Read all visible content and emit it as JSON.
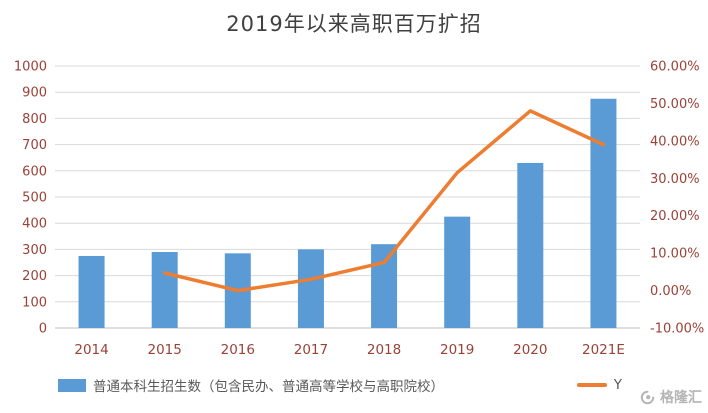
{
  "title": "2019年以来高职百万扩招",
  "colors": {
    "bar": "#5B9BD5",
    "line": "#ED7D31",
    "axis_label": "#9A4238",
    "grid": "#D9D9D9",
    "axis_line": "#BFBFBF",
    "title": "#404040",
    "legend_text": "#595959",
    "watermark": "#B5B5B5"
  },
  "chart_data": {
    "type": "bar",
    "title": "2019年以来高职百万扩招",
    "categories": [
      "2014",
      "2015",
      "2016",
      "2017",
      "2018",
      "2019",
      "2020",
      "2021E"
    ],
    "series": [
      {
        "name": "普通本科生招生数（包含民办、普通高等学校与高职院校）",
        "type": "bar",
        "axis": "left",
        "color": "#5B9BD5",
        "values": [
          275,
          290,
          285,
          300,
          320,
          425,
          630,
          875
        ]
      },
      {
        "name": "Y",
        "type": "line",
        "axis": "right",
        "color": "#ED7D31",
        "values": [
          null,
          4.7,
          0,
          3,
          7.5,
          31.5,
          48,
          39
        ]
      }
    ],
    "left_axis": {
      "min": 0,
      "max": 1000,
      "step": 100
    },
    "right_axis": {
      "min": -10,
      "max": 60,
      "step": 10,
      "format": "percent2"
    },
    "grid": true,
    "legend_position": "bottom"
  },
  "watermark": {
    "text": "格隆汇"
  }
}
